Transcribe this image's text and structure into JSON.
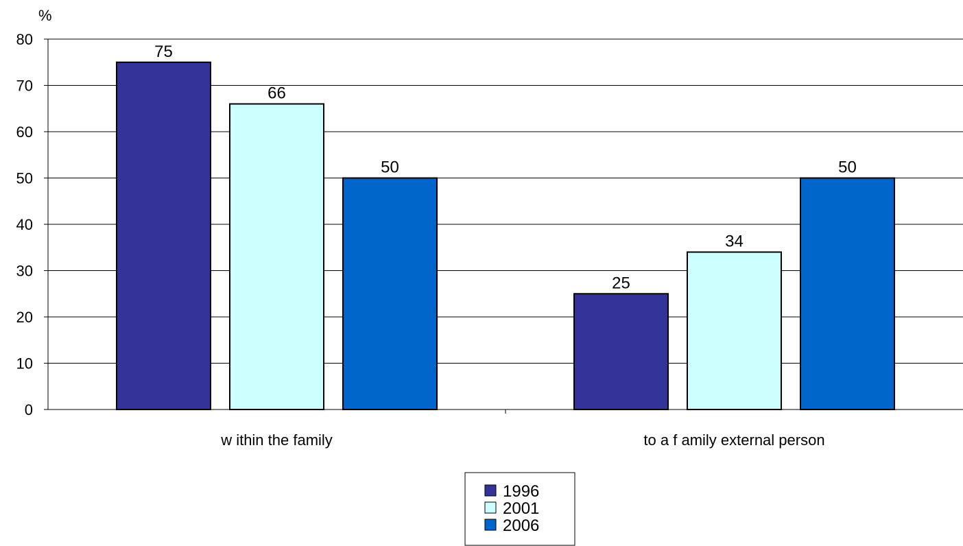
{
  "chart_data": {
    "type": "bar",
    "title": "",
    "xlabel": "",
    "ylabel": "%",
    "ylim": [
      0,
      80
    ],
    "yticks": [
      0,
      10,
      20,
      30,
      40,
      50,
      60,
      70,
      80
    ],
    "grid": true,
    "legend_position": "bottom-center",
    "categories": [
      "w ithin the family",
      "to a f amily external person"
    ],
    "series": [
      {
        "name": "1996",
        "color": "#333399",
        "values": [
          75,
          25
        ]
      },
      {
        "name": "2001",
        "color": "#CCFFFF",
        "values": [
          66,
          34
        ]
      },
      {
        "name": "2006",
        "color": "#0066CC",
        "values": [
          50,
          50
        ]
      }
    ]
  }
}
